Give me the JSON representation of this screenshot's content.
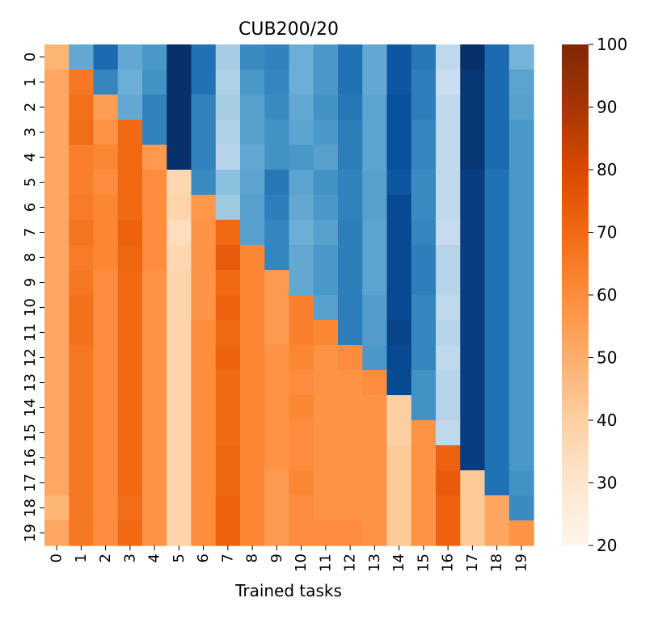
{
  "chart_data": {
    "type": "heatmap",
    "title": "CUB200/20",
    "xlabel": "Trained tasks",
    "ylabel": "",
    "x_tick_labels": [
      "0",
      "1",
      "2",
      "3",
      "4",
      "5",
      "6",
      "7",
      "8",
      "9",
      "10",
      "11",
      "12",
      "13",
      "14",
      "15",
      "16",
      "17",
      "18",
      "19"
    ],
    "y_tick_labels": [
      "0",
      "1",
      "2",
      "3",
      "4",
      "5",
      "6",
      "7",
      "8",
      "9",
      "10",
      "11",
      "12",
      "13",
      "14",
      "15",
      "16",
      "17",
      "18",
      "19"
    ],
    "colorbar": {
      "min": 20,
      "max": 100,
      "ticks": [
        20,
        30,
        40,
        50,
        60,
        70,
        80,
        90,
        100
      ],
      "tick_labels": [
        "20",
        "30",
        "40",
        "50",
        "60",
        "70",
        "80",
        "90",
        "100"
      ],
      "colormap": "Oranges"
    },
    "upper_triangle_colormap": "Blues",
    "grid": false,
    "values": [
      [
        48,
        58,
        38,
        58,
        52,
        16,
        40,
        72,
        48,
        45,
        60,
        52,
        40,
        58,
        32,
        42,
        78,
        20,
        38,
        62
      ],
      [
        52,
        66,
        46,
        60,
        50,
        16,
        40,
        74,
        52,
        46,
        60,
        52,
        40,
        58,
        32,
        44,
        82,
        22,
        38,
        56
      ],
      [
        52,
        68,
        55,
        58,
        45,
        16,
        45,
        72,
        55,
        48,
        58,
        50,
        42,
        56,
        30,
        44,
        78,
        22,
        38,
        55
      ],
      [
        52,
        69,
        58,
        70,
        45,
        16,
        45,
        74,
        55,
        50,
        56,
        52,
        44,
        56,
        30,
        46,
        78,
        22,
        38,
        52
      ],
      [
        52,
        64,
        62,
        70,
        56,
        16,
        45,
        76,
        58,
        50,
        52,
        55,
        44,
        56,
        30,
        46,
        78,
        22,
        38,
        52
      ],
      [
        52,
        64,
        60,
        70,
        60,
        37,
        48,
        66,
        56,
        42,
        56,
        50,
        45,
        55,
        32,
        48,
        78,
        24,
        40,
        52
      ],
      [
        52,
        65,
        62,
        70,
        60,
        38,
        57,
        70,
        55,
        44,
        58,
        52,
        45,
        55,
        28,
        48,
        78,
        24,
        40,
        52
      ],
      [
        52,
        67,
        62,
        72,
        60,
        34,
        58,
        70,
        55,
        46,
        60,
        55,
        44,
        56,
        28,
        46,
        80,
        24,
        40,
        52
      ],
      [
        52,
        65,
        62,
        71,
        60,
        37,
        58,
        74,
        62,
        46,
        58,
        52,
        44,
        56,
        28,
        44,
        76,
        24,
        40,
        52
      ],
      [
        52,
        66,
        60,
        70,
        58,
        38,
        58,
        70,
        62,
        56,
        58,
        52,
        44,
        56,
        28,
        44,
        76,
        24,
        40,
        52
      ],
      [
        52,
        68,
        60,
        70,
        58,
        38,
        58,
        72,
        62,
        56,
        64,
        55,
        44,
        54,
        28,
        46,
        78,
        24,
        40,
        52
      ],
      [
        52,
        68,
        60,
        70,
        58,
        38,
        60,
        70,
        62,
        56,
        64,
        62,
        44,
        54,
        26,
        46,
        76,
        24,
        40,
        52
      ],
      [
        52,
        66,
        60,
        70,
        58,
        38,
        60,
        72,
        62,
        58,
        62,
        58,
        60,
        52,
        28,
        46,
        78,
        24,
        40,
        52
      ],
      [
        52,
        66,
        60,
        70,
        58,
        38,
        60,
        70,
        62,
        58,
        60,
        58,
        58,
        60,
        28,
        50,
        76,
        24,
        40,
        52
      ],
      [
        52,
        66,
        60,
        70,
        58,
        38,
        60,
        70,
        62,
        58,
        62,
        58,
        58,
        58,
        40,
        50,
        76,
        24,
        40,
        52
      ],
      [
        52,
        66,
        60,
        70,
        58,
        38,
        60,
        70,
        62,
        58,
        60,
        58,
        58,
        58,
        40,
        58,
        78,
        24,
        40,
        52
      ],
      [
        52,
        66,
        60,
        70,
        58,
        38,
        60,
        71,
        62,
        58,
        60,
        58,
        58,
        58,
        42,
        58,
        72,
        24,
        40,
        52
      ],
      [
        52,
        66,
        60,
        70,
        58,
        38,
        60,
        71,
        62,
        56,
        62,
        58,
        58,
        58,
        42,
        58,
        74,
        42,
        40,
        50
      ],
      [
        48,
        66,
        60,
        69,
        58,
        38,
        60,
        72,
        62,
        56,
        60,
        58,
        58,
        58,
        42,
        58,
        72,
        42,
        52,
        48
      ],
      [
        52,
        66,
        60,
        70,
        58,
        38,
        60,
        72,
        62,
        56,
        60,
        60,
        60,
        58,
        42,
        58,
        72,
        42,
        52,
        58
      ]
    ]
  }
}
